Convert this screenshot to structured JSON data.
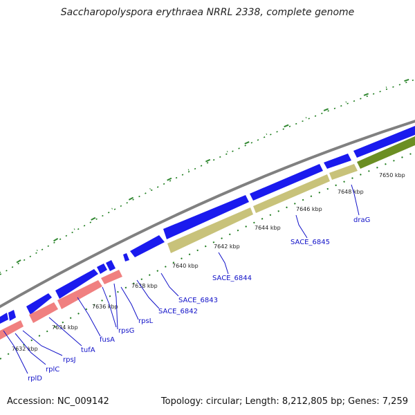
{
  "title": "Saccharopolyspora erythraea NRRL 2338, complete genome",
  "footer": {
    "accession": "Accession: NC_009142",
    "stats": "Topology: circular; Length: 8,212,805 bp; Genes: 7,259"
  },
  "kbp_labels": [
    "7632 kbp",
    "7634 kbp",
    "7636 kbp",
    "7638 kbp",
    "7640 kbp",
    "7642 kbp",
    "7644 kbp",
    "7646 kbp",
    "7648 kbp",
    "7650 kbp"
  ],
  "gene_labels": [
    "rplD",
    "rplC",
    "rpsJ",
    "tufA",
    "fusA",
    "rpsG",
    "rpsL",
    "SACE_6842",
    "SACE_6843",
    "SACE_6844",
    "SACE_6845",
    "draG"
  ],
  "colors": {
    "backbone": "#808080",
    "forward_cds": "#1a1aee",
    "rrna_like": "#f08080",
    "olive_feature": "#c8c27a",
    "green_feature": "#6b8e23",
    "ticks": "#1a7a1a",
    "label_line": "#1010c8"
  }
}
